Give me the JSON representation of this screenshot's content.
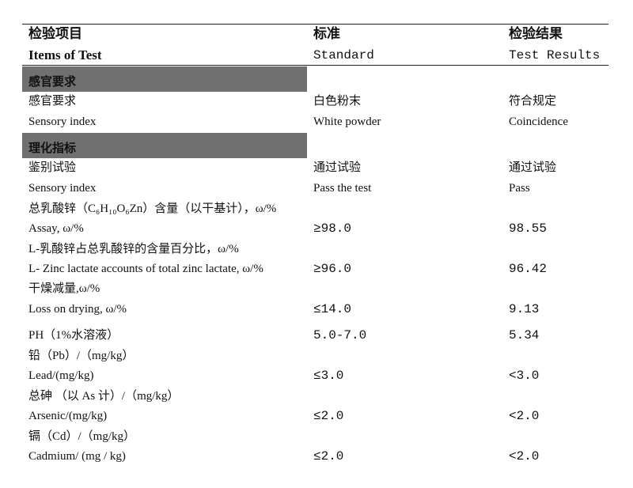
{
  "header": {
    "col1_cn": "检验项目",
    "col1_en": "Items of Test",
    "col2_cn": "标准",
    "col2_en": "Standard",
    "col3_cn": "检验结果",
    "col3_en": "Test Results"
  },
  "sections": [
    {
      "title": "感官要求"
    },
    {
      "title": "理化指标"
    }
  ],
  "rows": [
    {
      "item": "感官要求",
      "standard": "白色粉末",
      "result": "符合规定"
    },
    {
      "item": "Sensory index",
      "standard": "White powder",
      "result": "Coincidence"
    },
    {
      "item": "鉴别试验",
      "standard": "通过试验",
      "result": "通过试验"
    },
    {
      "item": "Sensory index",
      "standard": "Pass the test",
      "result": "Pass"
    },
    {
      "item": "总乳酸锌（C₆H₁₀O₆Zn）含量（以干基计），ω/%",
      "standard": "",
      "result": ""
    },
    {
      "item": "Assay, ω/%",
      "standard": "≥98.0",
      "result": "98.55"
    },
    {
      "item": "L-乳酸锌占总乳酸锌的含量百分比，ω/%",
      "standard": "",
      "result": ""
    },
    {
      "item": "L- Zinc lactate accounts of total zinc lactate, ω/%",
      "standard": "≥96.0",
      "result": "96.42"
    },
    {
      "item": "干燥减量,ω/%",
      "standard": "",
      "result": ""
    },
    {
      "item": "Loss on drying, ω/%",
      "standard": "≤14.0",
      "result": "9.13"
    },
    {
      "item": "PH（1%水溶液）",
      "standard": "5.0-7.0",
      "result": "5.34"
    },
    {
      "item": "铅（Pb）/（mg/kg）",
      "standard": "",
      "result": ""
    },
    {
      "item": "Lead/(mg/kg)",
      "standard": "≤3.0",
      "result": "<3.0"
    },
    {
      "item": "总砷 （以 As 计）/（mg/kg）",
      "standard": "",
      "result": ""
    },
    {
      "item": "Arsenic/(mg/kg)",
      "standard": "≤2.0",
      "result": "<2.0"
    },
    {
      "item": "镉（Cd）/（mg/kg）",
      "standard": "",
      "result": ""
    },
    {
      "item": "Cadmium/ (mg / kg)",
      "standard": "≤2.0",
      "result": "<2.0"
    }
  ]
}
